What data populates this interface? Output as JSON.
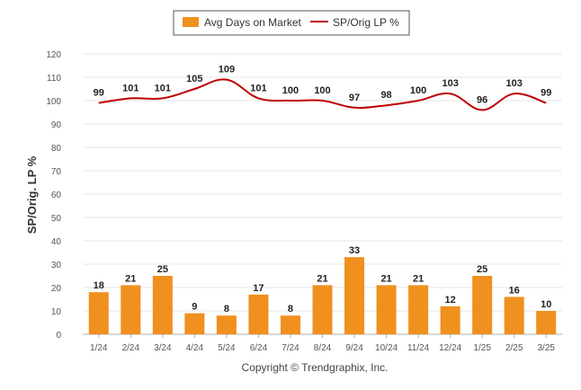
{
  "chart_data": {
    "type": "bar",
    "categories": [
      "1/24",
      "2/24",
      "3/24",
      "4/24",
      "5/24",
      "6/24",
      "7/24",
      "8/24",
      "9/24",
      "10/24",
      "11/24",
      "12/24",
      "1/25",
      "2/25",
      "3/25"
    ],
    "series": [
      {
        "name": "Avg Days on Market",
        "type": "bar",
        "color": "#f0901e",
        "values": [
          18,
          21,
          25,
          9,
          8,
          17,
          8,
          21,
          33,
          21,
          21,
          12,
          25,
          16,
          10
        ]
      },
      {
        "name": "SP/Orig LP %",
        "type": "line",
        "color": "#c00000",
        "values": [
          99,
          101,
          101,
          105,
          109,
          101,
          100,
          100,
          97,
          98,
          100,
          103,
          96,
          103,
          99
        ]
      }
    ],
    "ylabel": "SP/Orig. LP %",
    "xlabel": "",
    "ylim": [
      0,
      120
    ],
    "yticks": [
      0,
      10,
      20,
      30,
      40,
      50,
      60,
      70,
      80,
      90,
      100,
      110,
      120
    ],
    "grid": true,
    "legend_position": "top-center"
  },
  "credit": "Copyright © Trendgraphix, Inc."
}
